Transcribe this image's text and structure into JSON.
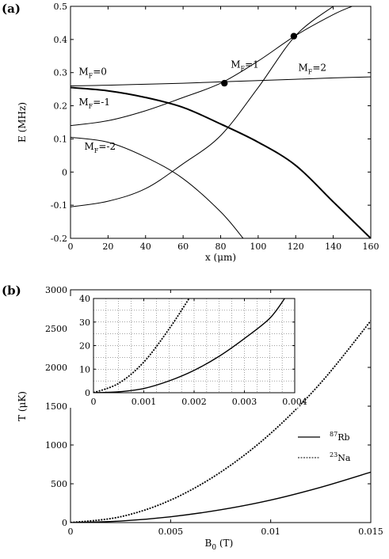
{
  "chart_data": [
    {
      "panel": "(a)",
      "type": "line",
      "xlabel": "x (μm)",
      "ylabel": "E (MHz)",
      "xlim": [
        0,
        160
      ],
      "ylim": [
        -0.2,
        0.5
      ],
      "xticks": [
        "0",
        "20",
        "40",
        "60",
        "80",
        "100",
        "120",
        "140",
        "160"
      ],
      "yticks": [
        "-0.2",
        "-0.1",
        "0",
        "0.1",
        "0.2",
        "0.3",
        "0.4",
        "0.5"
      ],
      "grid": false,
      "series": [
        {
          "name": "M_F=0",
          "x": [
            0,
            20,
            40,
            60,
            80,
            100,
            120,
            140,
            160
          ],
          "y": [
            0.26,
            0.262,
            0.265,
            0.268,
            0.272,
            0.276,
            0.28,
            0.284,
            0.287
          ]
        },
        {
          "name": "M_F=1",
          "x": [
            0,
            20,
            40,
            60,
            80,
            100,
            120,
            140,
            150
          ],
          "y": [
            0.14,
            0.155,
            0.185,
            0.225,
            0.268,
            0.335,
            0.412,
            0.475,
            0.5
          ]
        },
        {
          "name": "M_F=2",
          "x": [
            0,
            20,
            40,
            60,
            80,
            100,
            120,
            140
          ],
          "y": [
            -0.105,
            -0.088,
            -0.05,
            0.025,
            0.11,
            0.255,
            0.412,
            0.5
          ]
        },
        {
          "name": "M_F=-1",
          "x": [
            0,
            20,
            40,
            60,
            80,
            100,
            120,
            140,
            160
          ],
          "y": [
            0.255,
            0.245,
            0.225,
            0.195,
            0.145,
            0.09,
            0.02,
            -0.09,
            -0.2
          ]
        },
        {
          "name": "M_F=-2",
          "x": [
            0,
            20,
            40,
            60,
            80,
            92
          ],
          "y": [
            0.105,
            0.09,
            0.045,
            -0.02,
            -0.12,
            -0.2
          ]
        }
      ],
      "markers": [
        {
          "x": 82,
          "y": 0.268
        },
        {
          "x": 119,
          "y": 0.41
        }
      ],
      "curve_labels": [
        {
          "label_main": "M",
          "label_sub": "F",
          "label_rest": "=0",
          "at": [
            1,
            0.293
          ]
        },
        {
          "label_main": "M",
          "label_sub": "F",
          "label_rest": "=-1",
          "at": [
            1,
            0.201
          ]
        },
        {
          "label_main": "M",
          "label_sub": "F",
          "label_rest": "=-2",
          "at": [
            4,
            0.067
          ]
        },
        {
          "label_main": "M",
          "label_sub": "F",
          "label_rest": "=1",
          "at": [
            82,
            0.315
          ]
        },
        {
          "label_main": "M",
          "label_sub": "F",
          "label_rest": "=2",
          "at": [
            118,
            0.305
          ]
        }
      ]
    },
    {
      "panel": "(b)",
      "type": "line",
      "xlabel_main": "B",
      "xlabel_sub": "0",
      "xlabel_rest": " (T)",
      "ylabel": "T (μK)",
      "xlim": [
        0,
        0.015
      ],
      "ylim": [
        0,
        3000
      ],
      "xticks": [
        "0",
        "0.005",
        "0.01",
        "0.015"
      ],
      "yticks": [
        "0",
        "500",
        "1000",
        "1500",
        "2000",
        "2500",
        "3000"
      ],
      "grid": false,
      "series": [
        {
          "name": "87Rb",
          "sup": "87",
          "base": "Rb",
          "style": "solid",
          "x": [
            0,
            0.0025,
            0.005,
            0.0075,
            0.01,
            0.0125,
            0.015
          ],
          "y": [
            0,
            20,
            75,
            165,
            290,
            455,
            650
          ]
        },
        {
          "name": "23Na",
          "sup": "23",
          "base": "Na",
          "style": "dotted",
          "x": [
            0,
            0.0025,
            0.005,
            0.0075,
            0.01,
            0.0125,
            0.015
          ],
          "y": [
            0,
            75,
            290,
            650,
            1150,
            1800,
            2600
          ]
        }
      ],
      "legend_position": "right",
      "inset": {
        "xlim": [
          0,
          0.004
        ],
        "ylim": [
          0,
          40
        ],
        "xticks": [
          "0",
          "0.001",
          "0.002",
          "0.003",
          "0.004"
        ],
        "yticks": [
          "0",
          "10",
          "20",
          "30",
          "40"
        ],
        "grid": true,
        "series": [
          {
            "name": "87Rb",
            "style": "solid",
            "x": [
              0,
              0.0005,
              0.001,
              0.0015,
              0.002,
              0.0025,
              0.003,
              0.0035,
              0.0038
            ],
            "y": [
              0,
              0.4,
              1.8,
              5,
              9.5,
              15.5,
              23,
              31.5,
              40
            ]
          },
          {
            "name": "23Na",
            "style": "dotted",
            "x": [
              0,
              0.0005,
              0.001,
              0.0015,
              0.0019
            ],
            "y": [
              0,
              4,
              13,
              27,
              40
            ]
          }
        ]
      }
    }
  ]
}
